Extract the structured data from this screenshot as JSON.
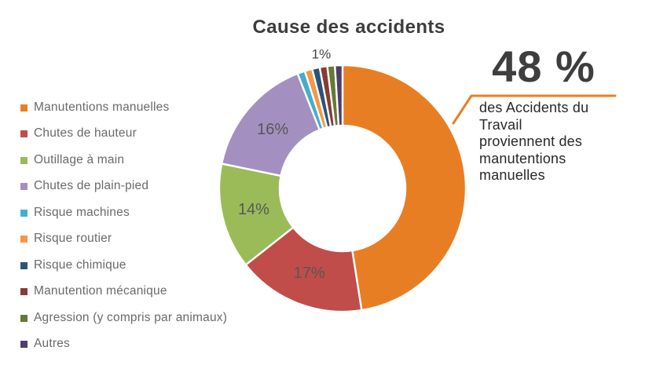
{
  "chart_data": {
    "type": "pie",
    "subtype": "donut",
    "title": "Cause des accidents",
    "legend_position": "left",
    "hole_ratio": 0.51,
    "background": "#FFFFFF",
    "slice_separator_color": "#FFFFFF",
    "slices": [
      {
        "name": "Manutentions manuelles",
        "value": 48,
        "color": "#E87E23",
        "label": ""
      },
      {
        "name": "Chutes de hauteur",
        "value": 17,
        "color": "#C04D4A",
        "label": "17%"
      },
      {
        "name": "Outillage à main",
        "value": 14,
        "color": "#9BBB59",
        "label": "14%"
      },
      {
        "name": "Chutes de plain-pied",
        "value": 16,
        "color": "#A48FC1",
        "label": "16%"
      },
      {
        "name": "Risque machines",
        "value": 1,
        "color": "#45AECB",
        "label": ""
      },
      {
        "name": "Risque routier",
        "value": 1,
        "color": "#F79646",
        "label": ""
      },
      {
        "name": "Risque chimique",
        "value": 1,
        "color": "#2B5379",
        "label": ""
      },
      {
        "name": "Manutention mécanique",
        "value": 1,
        "color": "#8A3A34",
        "label": ""
      },
      {
        "name": "Agression (y compris par animaux)",
        "value": 1,
        "color": "#657A35",
        "label": ""
      },
      {
        "name": "Autres",
        "value": 1,
        "color": "#4F3D6E",
        "label": ""
      }
    ],
    "small_slices_label": {
      "text": "1%",
      "angle_deg": 351
    },
    "callout": {
      "value": "48 %",
      "lines": [
        "des Accidents du",
        "Travail",
        "proviennent des",
        "manutentions",
        "manuelles"
      ],
      "line_color": "#E87E23"
    }
  }
}
